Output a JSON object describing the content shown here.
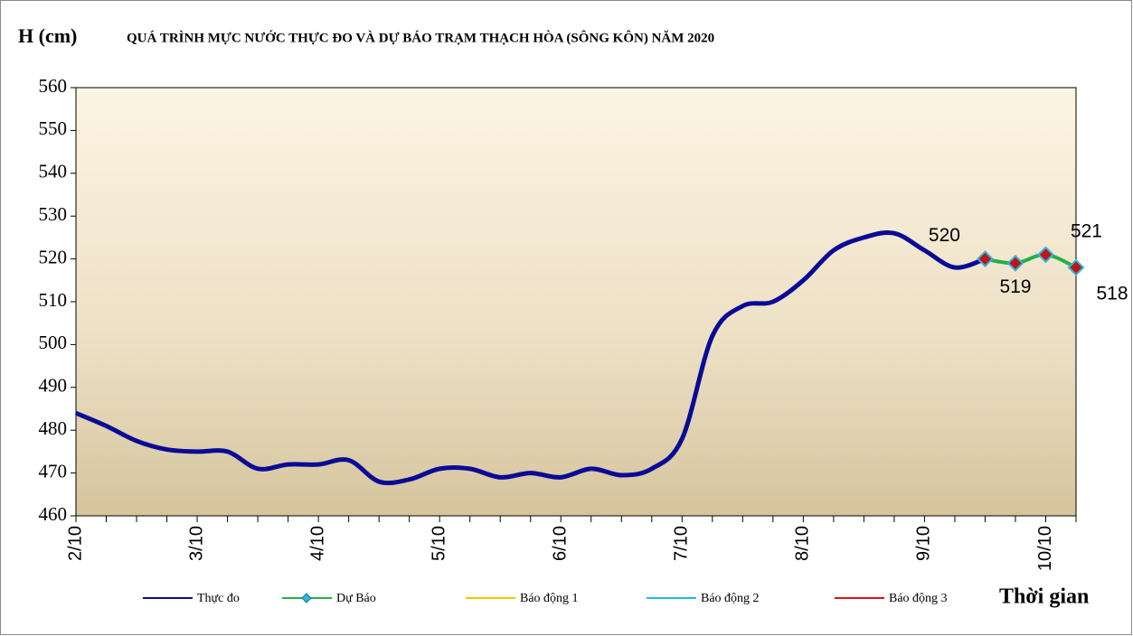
{
  "chart_data": {
    "type": "line",
    "title": "QUÁ TRÌNH MỰC NƯỚC THỰC ĐO VÀ DỰ BÁO TRẠM THẠCH HÒA (SÔNG KÔN) NĂM 2020",
    "y_label": "H (cm)",
    "x_label": "Thời gian",
    "categories": [
      "2/10",
      null,
      null,
      null,
      "3/10",
      null,
      null,
      null,
      "4/10",
      null,
      null,
      null,
      "5/10",
      null,
      null,
      null,
      "6/10",
      null,
      null,
      null,
      "7/10",
      null,
      null,
      null,
      "8/10",
      null,
      null,
      null,
      "9/10",
      null,
      null,
      null,
      "10/10",
      null
    ],
    "series": [
      {
        "name": "Thực đo",
        "color": "#0a0a96",
        "values": [
          484,
          481,
          477.5,
          475.5,
          475,
          475,
          471,
          472,
          472,
          473,
          468,
          468.5,
          471,
          471,
          469,
          470,
          469,
          471,
          469.5,
          471,
          478,
          502,
          509,
          510,
          515,
          522,
          525,
          526,
          522,
          518,
          520,
          null,
          null,
          null
        ]
      },
      {
        "name": "Dự Báo",
        "color": "#22b04a",
        "marker": "diamond",
        "values": [
          null,
          null,
          null,
          null,
          null,
          null,
          null,
          null,
          null,
          null,
          null,
          null,
          null,
          null,
          null,
          null,
          null,
          null,
          null,
          null,
          null,
          null,
          null,
          null,
          null,
          null,
          null,
          null,
          null,
          null,
          520,
          519,
          521,
          518
        ],
        "data_labels": true
      }
    ],
    "legend_only": [
      {
        "name": "Báo động 1",
        "color": "#f5c400"
      },
      {
        "name": "Báo động 2",
        "color": "#22b8e8"
      },
      {
        "name": "Báo động 3",
        "color": "#e01010"
      }
    ],
    "ylim": [
      460,
      560
    ],
    "yticks": [
      460,
      470,
      480,
      490,
      500,
      510,
      520,
      530,
      540,
      550,
      560
    ],
    "grid": false,
    "legend": "bottom"
  }
}
